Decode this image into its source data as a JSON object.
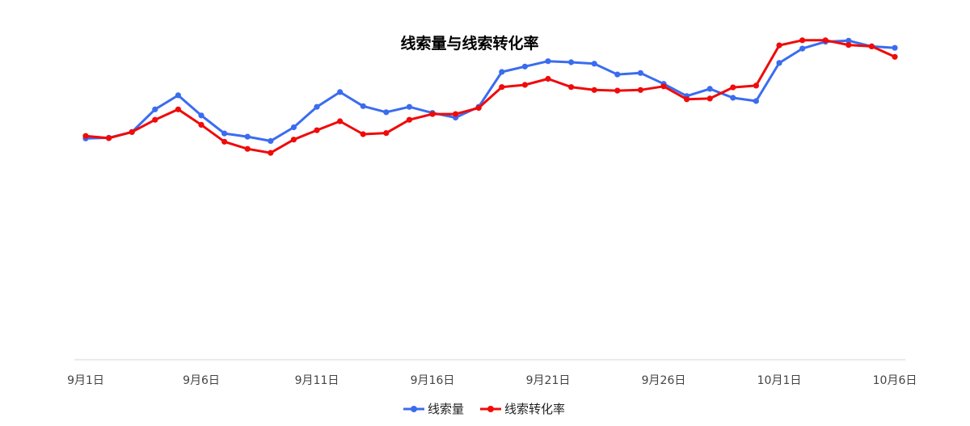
{
  "chart_data": {
    "type": "line",
    "title": "线索量与线索转化率",
    "xlabel": "",
    "ylabel": "",
    "ylim": [
      0,
      100
    ],
    "grid": false,
    "legend_position": "bottom",
    "categories": [
      "9月1日",
      "9月2日",
      "9月3日",
      "9月4日",
      "9月5日",
      "9月6日",
      "9月7日",
      "9月8日",
      "9月9日",
      "9月10日",
      "9月11日",
      "9月12日",
      "9月13日",
      "9月14日",
      "9月15日",
      "9月16日",
      "9月17日",
      "9月18日",
      "9月19日",
      "9月20日",
      "9月21日",
      "9月22日",
      "9月23日",
      "9月24日",
      "9月25日",
      "9月26日",
      "9月27日",
      "9月28日",
      "9月29日",
      "9月30日",
      "10月1日",
      "10月2日",
      "10月3日",
      "10月4日",
      "10月5日",
      "10月6日"
    ],
    "x_tick_labels": [
      "9月1日",
      "9月6日",
      "9月11日",
      "9月16日",
      "9月21日",
      "9月26日",
      "10月1日",
      "10月6日"
    ],
    "series": [
      {
        "name": "线索量",
        "color": "#3b6cf0",
        "values": [
          61.5,
          61.7,
          63.3,
          69.6,
          73.5,
          67.9,
          62.9,
          62.0,
          60.8,
          64.6,
          70.3,
          74.4,
          70.5,
          68.8,
          70.3,
          68.6,
          67.3,
          70.3,
          80.0,
          81.5,
          83.0,
          82.7,
          82.3,
          79.3,
          79.7,
          76.7,
          73.3,
          75.3,
          72.8,
          71.9,
          82.5,
          86.5,
          88.4,
          88.7,
          87.1,
          86.7
        ]
      },
      {
        "name": "线索转化率",
        "color": "#f00a0a",
        "values": [
          62.2,
          61.6,
          63.3,
          66.7,
          69.6,
          65.3,
          60.6,
          58.6,
          57.5,
          61.2,
          63.8,
          66.3,
          62.7,
          63.0,
          66.7,
          68.3,
          68.3,
          70.0,
          75.8,
          76.4,
          78.1,
          75.8,
          75.0,
          74.8,
          75.0,
          76.0,
          72.4,
          72.6,
          75.7,
          76.2,
          87.4,
          88.8,
          88.8,
          87.5,
          87.1,
          84.2
        ]
      }
    ]
  }
}
